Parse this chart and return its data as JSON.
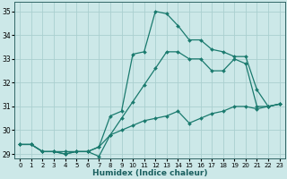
{
  "title": "",
  "xlabel": "Humidex (Indice chaleur)",
  "xlim": [
    -0.5,
    23.5
  ],
  "ylim": [
    28.8,
    35.4
  ],
  "yticks": [
    29,
    30,
    31,
    32,
    33,
    34,
    35
  ],
  "xticks": [
    0,
    1,
    2,
    3,
    4,
    5,
    6,
    7,
    8,
    9,
    10,
    11,
    12,
    13,
    14,
    15,
    16,
    17,
    18,
    19,
    20,
    21,
    22,
    23
  ],
  "bg_color": "#cce8e8",
  "grid_color": "#aacfcf",
  "line_color": "#1a7a6e",
  "line1_x": [
    0,
    1,
    2,
    3,
    4,
    5,
    6,
    7,
    8,
    9,
    10,
    11,
    12,
    13,
    14,
    15,
    16,
    17,
    18,
    19,
    20,
    21,
    22,
    23
  ],
  "line1_y": [
    29.4,
    29.4,
    29.1,
    29.1,
    29.1,
    29.1,
    29.1,
    28.9,
    29.8,
    30.5,
    31.2,
    31.9,
    32.6,
    33.3,
    33.3,
    33.0,
    33.0,
    32.5,
    32.5,
    33.0,
    32.8,
    31.0,
    31.0,
    31.1
  ],
  "line2_x": [
    0,
    1,
    2,
    3,
    4,
    5,
    6,
    7,
    8,
    9,
    10,
    11,
    12,
    13,
    14,
    15,
    16,
    17,
    18,
    19,
    20,
    21,
    22,
    23
  ],
  "line2_y": [
    29.4,
    29.4,
    29.1,
    29.1,
    29.0,
    29.1,
    29.1,
    29.3,
    30.6,
    30.8,
    33.2,
    33.3,
    35.0,
    34.9,
    34.4,
    33.8,
    33.8,
    33.4,
    33.3,
    33.1,
    33.1,
    31.7,
    31.0,
    31.1
  ],
  "line3_x": [
    0,
    1,
    2,
    3,
    4,
    5,
    6,
    7,
    8,
    9,
    10,
    11,
    12,
    13,
    14,
    15,
    16,
    17,
    18,
    19,
    20,
    21,
    22,
    23
  ],
  "line3_y": [
    29.4,
    29.4,
    29.1,
    29.1,
    29.0,
    29.1,
    29.1,
    29.3,
    29.8,
    30.0,
    30.2,
    30.4,
    30.5,
    30.6,
    30.8,
    30.3,
    30.5,
    30.7,
    30.8,
    31.0,
    31.0,
    30.9,
    31.0,
    31.1
  ]
}
